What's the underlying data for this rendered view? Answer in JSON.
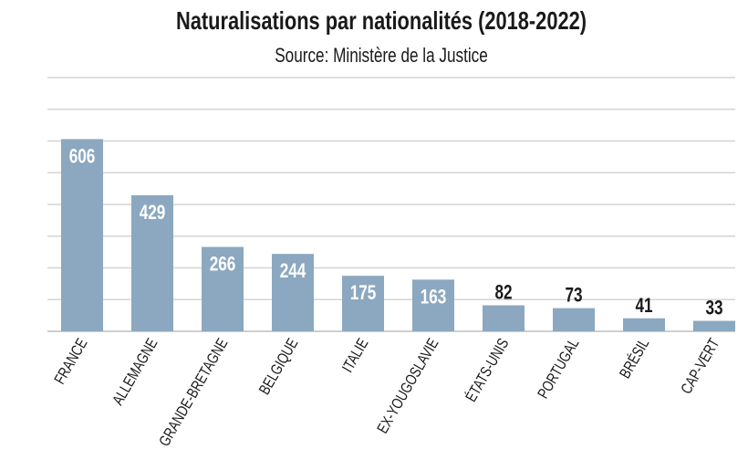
{
  "chart_data": {
    "type": "bar",
    "title": "Naturalisations par nationalités (2018-2022)",
    "subtitle": "Source: Ministère de la Justice",
    "categories": [
      "FRANCE",
      "ALLEMAGNE",
      "GRANDE-BRETAGNE",
      "BELGIQUE",
      "ITALIE",
      "EX-YOUGOSLAVIE",
      "ÉTATS-UNIS",
      "PORTUGAL",
      "BRÉSIL",
      "CAP-VERT"
    ],
    "values": [
      606,
      429,
      266,
      244,
      175,
      163,
      82,
      73,
      41,
      33
    ],
    "xlabel": "",
    "ylabel": "",
    "ylim": [
      0,
      800
    ],
    "grid": true,
    "grid_step": 100,
    "y_tick_labels_shown": false,
    "colors": {
      "bar": "#8ba8c0",
      "grid": "#d4d4d4",
      "label_inside": "#ffffff",
      "label_outside": "#1a1a1a"
    }
  }
}
